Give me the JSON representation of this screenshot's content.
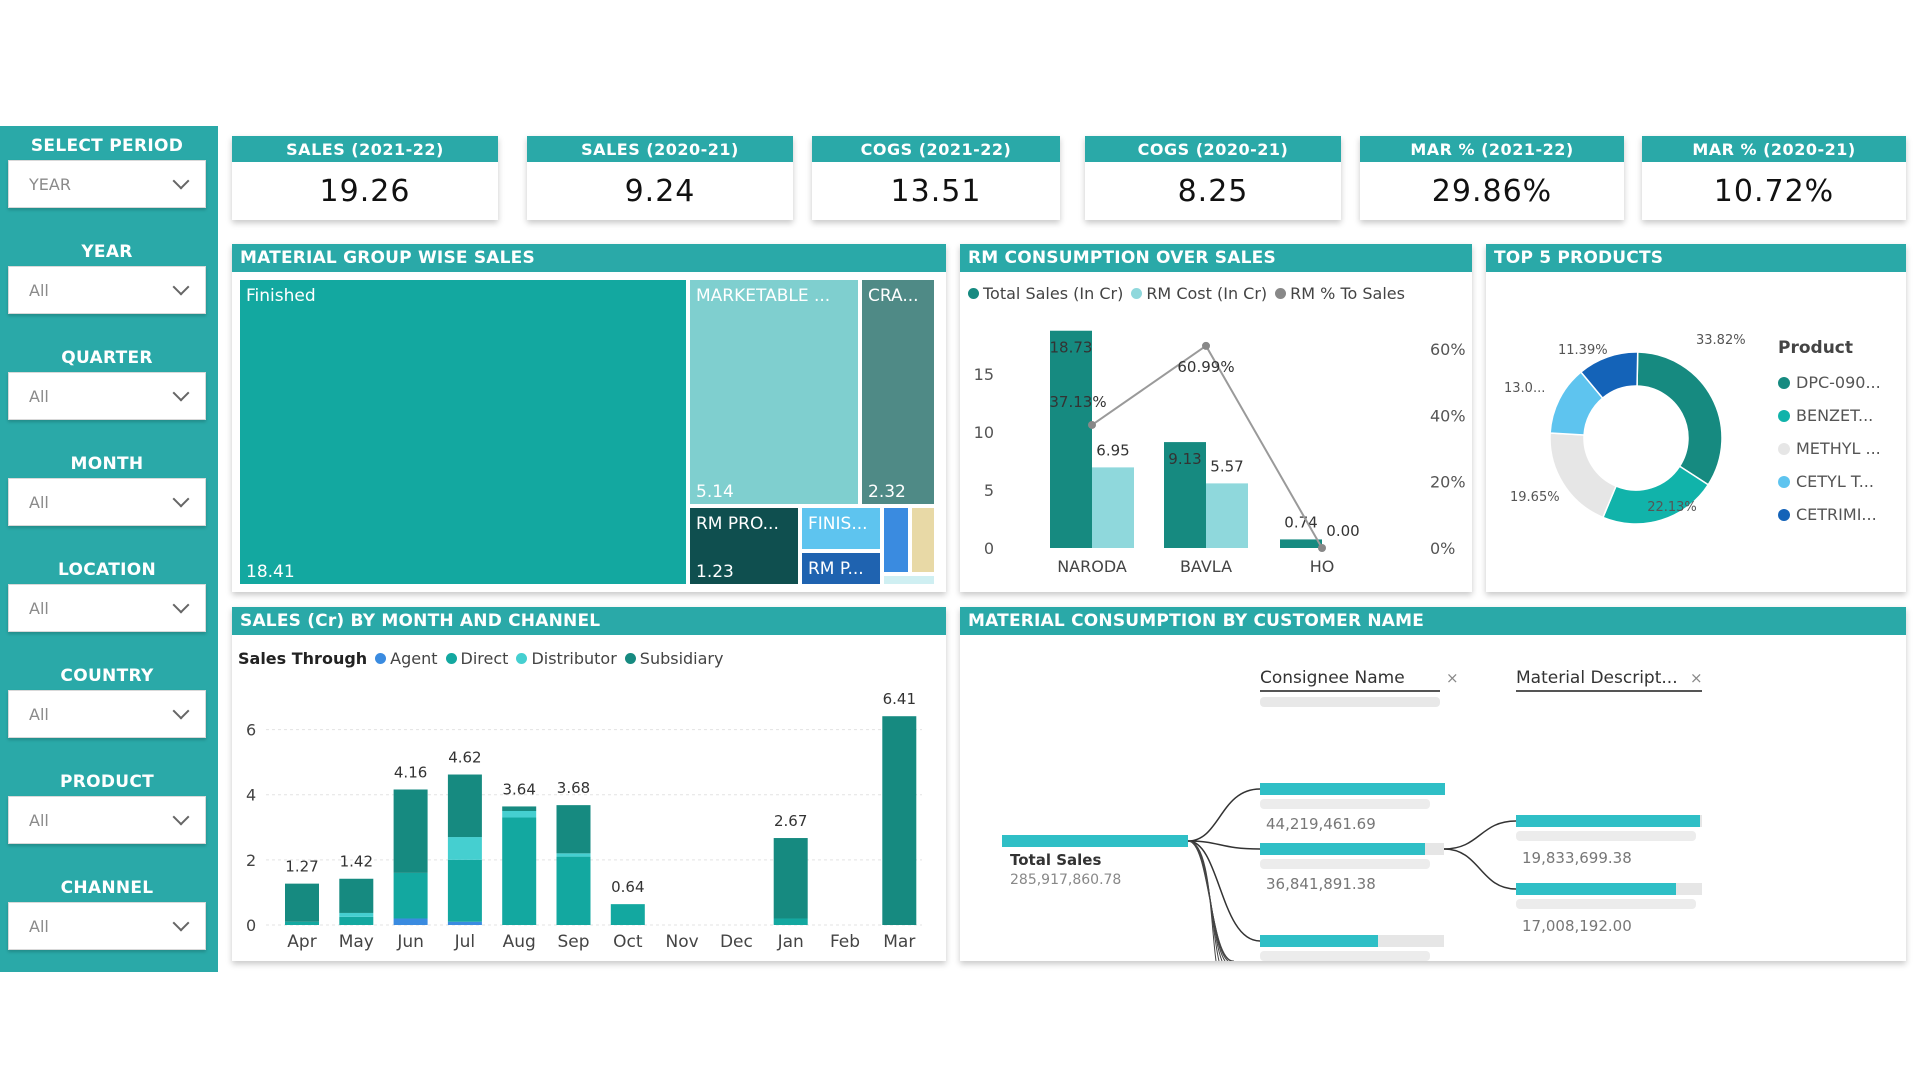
{
  "slicers": [
    {
      "label": "SELECT PERIOD",
      "value": "YEAR"
    },
    {
      "label": "YEAR",
      "value": "All"
    },
    {
      "label": "QUARTER",
      "value": "All"
    },
    {
      "label": "MONTH",
      "value": "All"
    },
    {
      "label": "LOCATION",
      "value": "All"
    },
    {
      "label": "COUNTRY",
      "value": "All"
    },
    {
      "label": "PRODUCT",
      "value": "All"
    },
    {
      "label": "CHANNEL",
      "value": "All"
    }
  ],
  "kpis": [
    {
      "label": "SALES (2021-22)",
      "value": "19.26"
    },
    {
      "label": "SALES (2020-21)",
      "value": "9.24"
    },
    {
      "label": "COGS (2021-22)",
      "value": "13.51"
    },
    {
      "label": "COGS (2020-21)",
      "value": "8.25"
    },
    {
      "label": "MAR % (2021-22)",
      "value": "29.86%"
    },
    {
      "label": "MAR % (2020-21)",
      "value": "10.72%"
    }
  ],
  "treemap": {
    "title": "MATERIAL GROUP WISE SALES",
    "items": [
      {
        "label": "Finished",
        "value": "18.41",
        "color": "#13a8a0"
      },
      {
        "label": "MARKETABLE ...",
        "value": "5.14",
        "color": "#7fcfcf"
      },
      {
        "label": "CRA...",
        "value": "2.32",
        "color": "#4f8a86"
      },
      {
        "label": "RM PRO...",
        "value": "1.23",
        "color": "#0f4f4f"
      },
      {
        "label": "FINIS...",
        "value": "",
        "color": "#5ec4ef"
      },
      {
        "label": "RM P...",
        "value": "",
        "color": "#1f63b0"
      }
    ]
  },
  "rm_chart": {
    "title": "RM CONSUMPTION OVER SALES",
    "chart_data": {
      "type": "bar",
      "categories": [
        "NARODA",
        "BAVLA",
        "HO"
      ],
      "series": [
        {
          "name": "Total Sales (In Cr)",
          "values": [
            18.73,
            9.13,
            0.74
          ],
          "color": "#168a80"
        },
        {
          "name": "RM Cost (In Cr)",
          "values": [
            6.95,
            5.57,
            0.0
          ],
          "color": "#8fd8dc"
        },
        {
          "name": "RM % To Sales",
          "values": [
            37.13,
            60.99,
            0
          ],
          "color": "#888888",
          "axis": "right"
        }
      ],
      "data_labels": {
        "Total Sales (In Cr)": [
          "18.73",
          "9.13",
          "0.74"
        ],
        "RM Cost (In Cr)": [
          "6.95",
          "5.57",
          "0.00"
        ],
        "RM % To Sales": [
          "37.13%",
          "60.99%",
          ""
        ]
      },
      "y_ticks": [
        "0",
        "5",
        "10",
        "15"
      ],
      "y2_ticks": [
        "0%",
        "20%",
        "40%",
        "60%"
      ],
      "ylim": [
        0,
        20
      ],
      "y2lim": [
        0,
        70
      ],
      "legend": "top-left"
    }
  },
  "top5": {
    "title": "TOP 5 PRODUCTS",
    "legend_title": "Product",
    "chart_data": {
      "type": "pie",
      "labels": [
        "DPC-090...",
        "BENZET...",
        "METHYL ...",
        "CETYL T...",
        "CETRIMI..."
      ],
      "values": [
        33.82,
        22.13,
        19.65,
        13.0,
        11.39
      ],
      "value_labels": [
        "33.82%",
        "22.13%",
        "19.65%",
        "13.0...",
        "11.39%"
      ],
      "colors": [
        "#168a80",
        "#11b3aa",
        "#e6e6e6",
        "#5ec4ef",
        "#1463b8"
      ]
    }
  },
  "month_chart": {
    "title": "SALES (Cr) BY MONTH AND CHANNEL",
    "legend_title": "Sales Through",
    "chart_data": {
      "type": "bar",
      "stacked": true,
      "categories": [
        "Apr",
        "May",
        "Jun",
        "Jul",
        "Aug",
        "Sep",
        "Oct",
        "Nov",
        "Dec",
        "Jan",
        "Feb",
        "Mar"
      ],
      "totals": [
        1.27,
        1.42,
        4.16,
        4.62,
        3.64,
        3.68,
        0.64,
        0,
        0,
        2.67,
        0,
        6.41
      ],
      "total_labels": [
        "1.27",
        "1.42",
        "4.16",
        "4.62",
        "3.64",
        "3.68",
        "0.64",
        "",
        "",
        "2.67",
        "",
        "6.41"
      ],
      "series": [
        {
          "name": "Agent",
          "color": "#3a8be0",
          "values": [
            0,
            0,
            0.2,
            0.1,
            0,
            0,
            0,
            0,
            0,
            0,
            0,
            0
          ]
        },
        {
          "name": "Direct",
          "color": "#13a8a0",
          "values": [
            0.1,
            0.25,
            1.4,
            1.9,
            3.3,
            2.1,
            0.64,
            0,
            0,
            0.2,
            0,
            0
          ]
        },
        {
          "name": "Distributor",
          "color": "#45cfd0",
          "values": [
            0,
            0.12,
            0,
            0.7,
            0.2,
            0.1,
            0,
            0,
            0,
            0,
            0,
            0
          ]
        },
        {
          "name": "Subsidiary",
          "color": "#168a80",
          "values": [
            1.17,
            1.05,
            2.56,
            1.92,
            0.14,
            1.48,
            0,
            0,
            0,
            2.47,
            0,
            6.41
          ]
        }
      ],
      "y_ticks": [
        "0",
        "2",
        "4",
        "6"
      ],
      "ylim": [
        0,
        7
      ]
    }
  },
  "decomp": {
    "title": "MATERIAL CONSUMPTION BY CUSTOMER NAME",
    "level1_header": "Consignee Name",
    "level2_header": "Material Descript...",
    "root_label": "Total Sales",
    "root_value": "285,917,860.78",
    "level1_values": [
      "44,219,461.69",
      "36,841,891.38"
    ],
    "level2_values": [
      "19,833,699.38",
      "17,008,192.00"
    ],
    "close_glyph": "×"
  }
}
